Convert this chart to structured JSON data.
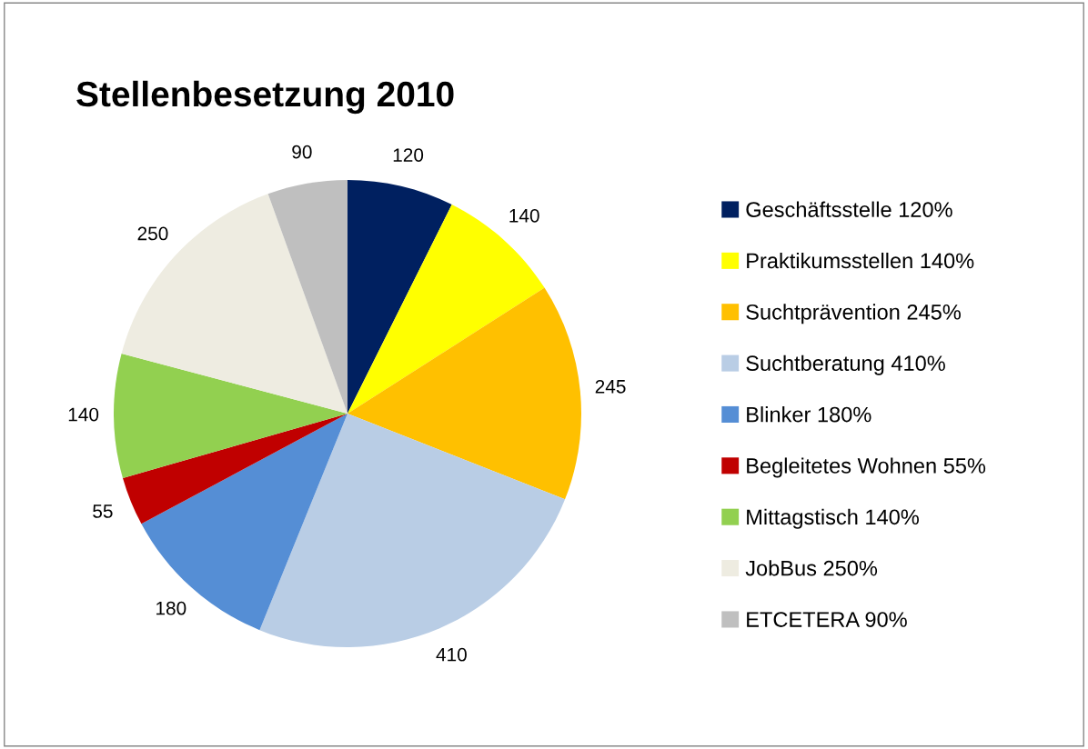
{
  "chart_data": {
    "type": "pie",
    "title": "Stellenbesetzung 2010",
    "categories": [
      "Geschäftsstelle 120%",
      "Praktikumsstellen 140%",
      "Suchtprävention 245%",
      "Suchtberatung 410%",
      "Blinker 180%",
      "Begleitetes Wohnen 55%",
      "Mittagstisch 140%",
      "JobBus 250%",
      "ETCETERA 90%"
    ],
    "values": [
      120,
      140,
      245,
      410,
      180,
      55,
      140,
      250,
      90
    ],
    "colors": [
      "#002060",
      "#ffff00",
      "#ffc000",
      "#b9cde5",
      "#558ed5",
      "#c00000",
      "#92d050",
      "#eeece1",
      "#bfbfbf"
    ],
    "data_labels": true,
    "legend": "right"
  }
}
